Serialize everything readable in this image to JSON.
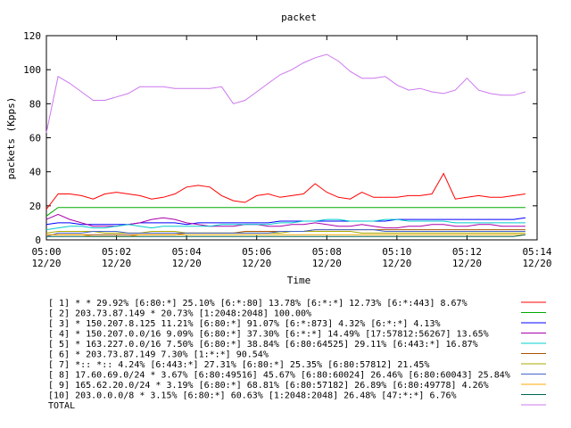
{
  "chart_data": {
    "type": "line",
    "title": "packet",
    "xlabel": "Time",
    "ylabel": "packets (Kpps)",
    "ylim": [
      0,
      120
    ],
    "yticks": [
      0,
      20,
      40,
      60,
      80,
      100,
      120
    ],
    "xticks": [
      {
        "t": "05:00",
        "d": "12/20"
      },
      {
        "t": "05:02",
        "d": "12/20"
      },
      {
        "t": "05:04",
        "d": "12/20"
      },
      {
        "t": "05:06",
        "d": "12/20"
      },
      {
        "t": "05:08",
        "d": "12/20"
      },
      {
        "t": "05:10",
        "d": "12/20"
      },
      {
        "t": "05:12",
        "d": "12/20"
      },
      {
        "t": "05:14",
        "d": "12/20"
      }
    ],
    "x": [
      "05:00:00",
      "05:00:20",
      "05:00:40",
      "05:01:00",
      "05:01:20",
      "05:01:40",
      "05:02:00",
      "05:02:20",
      "05:02:40",
      "05:03:00",
      "05:03:20",
      "05:03:40",
      "05:04:00",
      "05:04:20",
      "05:04:40",
      "05:05:00",
      "05:05:20",
      "05:05:40",
      "05:06:00",
      "05:06:20",
      "05:06:40",
      "05:07:00",
      "05:07:20",
      "05:07:40",
      "05:08:00",
      "05:08:20",
      "05:08:40",
      "05:09:00",
      "05:09:20",
      "05:09:40",
      "05:10:00",
      "05:10:20",
      "05:10:40",
      "05:11:00",
      "05:11:20",
      "05:11:40",
      "05:12:00",
      "05:12:20",
      "05:12:40",
      "05:13:00",
      "05:13:20",
      "05:13:40"
    ],
    "series": [
      {
        "name": "[ 1] * * 29.92%  [6:80:*] 25.10% [6:*:80] 13.78% [6:*:*] 12.73% [6:*:443] 8.67%",
        "color": "#ff0000",
        "values": [
          18,
          27,
          27,
          26,
          24,
          27,
          28,
          27,
          26,
          24,
          25,
          27,
          31,
          32,
          31,
          26,
          23,
          22,
          26,
          27,
          25,
          26,
          27,
          33,
          28,
          25,
          24,
          28,
          25,
          25,
          25,
          26,
          26,
          27,
          39,
          24,
          25,
          26,
          25,
          25,
          26,
          27
        ]
      },
      {
        "name": "[ 2] 203.73.87.149 * 20.73%  [1:2048:2048] 100.00%",
        "color": "#00aa00",
        "values": [
          14,
          19,
          19,
          19,
          19,
          19,
          19,
          19,
          19,
          19,
          19,
          19,
          19,
          19,
          19,
          19,
          19,
          19,
          19,
          19,
          19,
          19,
          19,
          19,
          19,
          19,
          19,
          19,
          19,
          19,
          19,
          19,
          19,
          19,
          19,
          19,
          19,
          19,
          19,
          19,
          19,
          19
        ]
      },
      {
        "name": "[ 3] * 150.207.8.125 11.21%  [6:80:*] 91.07% [6:*:873] 4.32% [6:*:*] 4.13%",
        "color": "#0000ff",
        "values": [
          9,
          10,
          10,
          9,
          9,
          9,
          9,
          9,
          10,
          10,
          10,
          10,
          9,
          10,
          10,
          10,
          10,
          10,
          10,
          10,
          11,
          11,
          11,
          11,
          11,
          11,
          11,
          11,
          11,
          11,
          12,
          12,
          12,
          12,
          12,
          12,
          12,
          12,
          12,
          12,
          12,
          13
        ]
      },
      {
        "name": "[ 4] * 150.207.0.0/16 9.09%  [6:80:*] 37.30% [6:*:*] 14.49% [17:57812:56267] 13.65%",
        "color": "#aa00aa",
        "values": [
          12,
          15,
          12,
          10,
          8,
          8,
          8,
          9,
          10,
          12,
          13,
          12,
          10,
          9,
          8,
          8,
          8,
          9,
          9,
          8,
          8,
          9,
          9,
          10,
          9,
          8,
          8,
          9,
          8,
          7,
          7,
          8,
          8,
          9,
          9,
          8,
          8,
          9,
          9,
          8,
          8,
          8
        ]
      },
      {
        "name": "[ 5] * 163.227.0.0/16 7.50%  [6:80:*] 38.84% [6:80:64525] 29.11% [6:443:*] 16.87%",
        "color": "#00cccc",
        "values": [
          6,
          7,
          8,
          8,
          7,
          7,
          8,
          9,
          8,
          7,
          8,
          8,
          8,
          8,
          8,
          9,
          9,
          9,
          9,
          9,
          10,
          10,
          11,
          11,
          12,
          12,
          11,
          11,
          11,
          12,
          12,
          11,
          11,
          11,
          11,
          10,
          10,
          10,
          10,
          10,
          10,
          10
        ]
      },
      {
        "name": "[ 6] * 203.73.87.149 7.30%  [1:*:*] 90.54%",
        "color": "#aa5500",
        "values": [
          3,
          3,
          3,
          3,
          3,
          3,
          3,
          3,
          3,
          3,
          3,
          3,
          4,
          4,
          4,
          4,
          4,
          5,
          5,
          5,
          5,
          5,
          5,
          6,
          6,
          6,
          6,
          6,
          6,
          6,
          6,
          6,
          6,
          6,
          6,
          6,
          6,
          6,
          6,
          6,
          6,
          6
        ]
      },
      {
        "name": "[ 7] *:: *:: 4.24%  [6:443:*] 27.31% [6:80:*] 25.35% [6:80:57812] 21.45%",
        "color": "#aaaa00",
        "values": [
          4,
          5,
          5,
          5,
          5,
          4,
          4,
          4,
          4,
          5,
          5,
          5,
          4,
          4,
          4,
          4,
          4,
          4,
          4,
          4,
          4,
          5,
          5,
          5,
          5,
          5,
          5,
          4,
          4,
          4,
          4,
          4,
          4,
          4,
          4,
          4,
          4,
          4,
          4,
          4,
          4,
          4
        ]
      },
      {
        "name": "[ 8] 17.60.69.0/24 * 3.67%  [6:80:49516] 45.67% [6:80:60024] 26.46% [6:80:60043] 25.84%",
        "color": "#4466cc",
        "values": [
          2,
          4,
          4,
          4,
          5,
          5,
          5,
          4,
          4,
          4,
          4,
          4,
          4,
          4,
          4,
          4,
          4,
          4,
          4,
          4,
          5,
          5,
          5,
          6,
          6,
          6,
          6,
          6,
          6,
          5,
          5,
          5,
          5,
          5,
          5,
          5,
          5,
          5,
          5,
          5,
          5,
          5
        ]
      },
      {
        "name": "[ 9] 165.62.20.0/24 * 3.19%  [6:80:*] 68.81% [6:80:57182] 26.89% [6:80:49778] 4.26%",
        "color": "#ffaa00",
        "values": [
          3,
          3,
          3,
          3,
          2,
          2,
          2,
          2,
          3,
          3,
          3,
          3,
          3,
          3,
          3,
          3,
          3,
          3,
          3,
          3,
          3,
          3,
          3,
          3,
          3,
          3,
          3,
          3,
          3,
          3,
          3,
          3,
          3,
          3,
          3,
          3,
          3,
          3,
          3,
          3,
          3,
          3
        ]
      },
      {
        "name": "[10] 203.0.0.0/8 * 3.15%  [6:80:*] 60.63% [1:2048:2048] 26.48% [47:*:*] 6.76%",
        "color": "#006655",
        "values": [
          2,
          2,
          2,
          2,
          2,
          2,
          2,
          2,
          2,
          2,
          2,
          2,
          2,
          2,
          2,
          2,
          2,
          2,
          2,
          2,
          2,
          2,
          2,
          2,
          2,
          2,
          2,
          2,
          2,
          2,
          2,
          2,
          2,
          2,
          2,
          2,
          2,
          2,
          2,
          2,
          2,
          3
        ]
      },
      {
        "name": "TOTAL",
        "color": "#cc77ee",
        "values": [
          63,
          96,
          92,
          87,
          82,
          82,
          84,
          86,
          90,
          90,
          90,
          89,
          89,
          89,
          89,
          90,
          80,
          82,
          87,
          92,
          97,
          100,
          104,
          107,
          109,
          105,
          99,
          95,
          95,
          96,
          91,
          88,
          89,
          87,
          86,
          88,
          95,
          88,
          86,
          85,
          85,
          87
        ]
      }
    ]
  }
}
